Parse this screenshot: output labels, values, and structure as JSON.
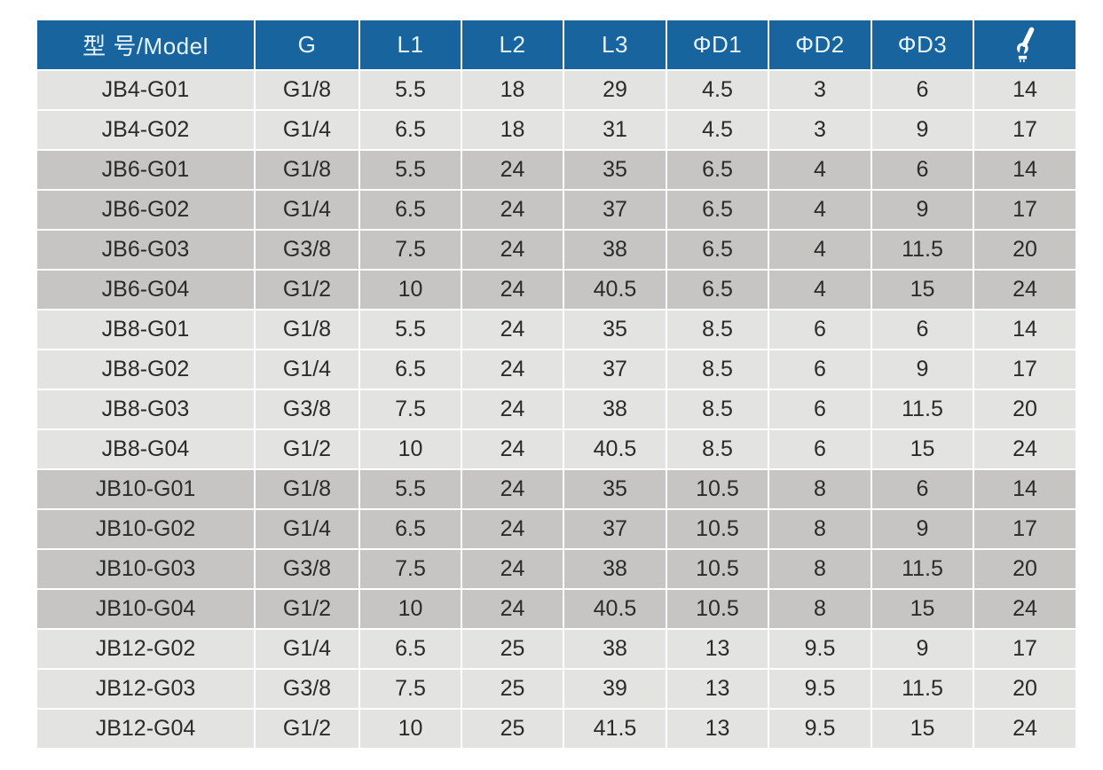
{
  "colors": {
    "page_bg": "#ffffff",
    "header_bg": "#17649e",
    "header_text": "#e8f3fb",
    "row_light": "#e3e3e1",
    "row_dark": "#c6c5c3",
    "cell_text": "#2b2b2b",
    "separator": "#ffffff",
    "icon_color": "#ffffff"
  },
  "table": {
    "columns": [
      {
        "label": "型 号/Model"
      },
      {
        "label": "G"
      },
      {
        "label": "L1"
      },
      {
        "label": "L2"
      },
      {
        "label": "L3"
      },
      {
        "label": "ΦD1"
      },
      {
        "label": "ΦD2"
      },
      {
        "label": "ΦD3"
      },
      {
        "label": "",
        "icon": "wrench-icon"
      }
    ],
    "rows": [
      {
        "shade": "light",
        "cells": [
          "JB4-G01",
          "G1/8",
          "5.5",
          "18",
          "29",
          "4.5",
          "3",
          "6",
          "14"
        ]
      },
      {
        "shade": "light",
        "cells": [
          "JB4-G02",
          "G1/4",
          "6.5",
          "18",
          "31",
          "4.5",
          "3",
          "9",
          "17"
        ]
      },
      {
        "shade": "dark",
        "cells": [
          "JB6-G01",
          "G1/8",
          "5.5",
          "24",
          "35",
          "6.5",
          "4",
          "6",
          "14"
        ]
      },
      {
        "shade": "dark",
        "cells": [
          "JB6-G02",
          "G1/4",
          "6.5",
          "24",
          "37",
          "6.5",
          "4",
          "9",
          "17"
        ]
      },
      {
        "shade": "dark",
        "cells": [
          "JB6-G03",
          "G3/8",
          "7.5",
          "24",
          "38",
          "6.5",
          "4",
          "11.5",
          "20"
        ]
      },
      {
        "shade": "dark",
        "cells": [
          "JB6-G04",
          "G1/2",
          "10",
          "24",
          "40.5",
          "6.5",
          "4",
          "15",
          "24"
        ]
      },
      {
        "shade": "light",
        "cells": [
          "JB8-G01",
          "G1/8",
          "5.5",
          "24",
          "35",
          "8.5",
          "6",
          "6",
          "14"
        ]
      },
      {
        "shade": "light",
        "cells": [
          "JB8-G02",
          "G1/4",
          "6.5",
          "24",
          "37",
          "8.5",
          "6",
          "9",
          "17"
        ]
      },
      {
        "shade": "light",
        "cells": [
          "JB8-G03",
          "G3/8",
          "7.5",
          "24",
          "38",
          "8.5",
          "6",
          "11.5",
          "20"
        ]
      },
      {
        "shade": "light",
        "cells": [
          "JB8-G04",
          "G1/2",
          "10",
          "24",
          "40.5",
          "8.5",
          "6",
          "15",
          "24"
        ]
      },
      {
        "shade": "dark",
        "cells": [
          "JB10-G01",
          "G1/8",
          "5.5",
          "24",
          "35",
          "10.5",
          "8",
          "6",
          "14"
        ]
      },
      {
        "shade": "dark",
        "cells": [
          "JB10-G02",
          "G1/4",
          "6.5",
          "24",
          "37",
          "10.5",
          "8",
          "9",
          "17"
        ]
      },
      {
        "shade": "dark",
        "cells": [
          "JB10-G03",
          "G3/8",
          "7.5",
          "24",
          "38",
          "10.5",
          "8",
          "11.5",
          "20"
        ]
      },
      {
        "shade": "dark",
        "cells": [
          "JB10-G04",
          "G1/2",
          "10",
          "24",
          "40.5",
          "10.5",
          "8",
          "15",
          "24"
        ]
      },
      {
        "shade": "light",
        "cells": [
          "JB12-G02",
          "G1/4",
          "6.5",
          "25",
          "38",
          "13",
          "9.5",
          "9",
          "17"
        ]
      },
      {
        "shade": "light",
        "cells": [
          "JB12-G03",
          "G3/8",
          "7.5",
          "25",
          "39",
          "13",
          "9.5",
          "11.5",
          "20"
        ]
      },
      {
        "shade": "light",
        "cells": [
          "JB12-G04",
          "G1/2",
          "10",
          "25",
          "41.5",
          "13",
          "9.5",
          "15",
          "24"
        ]
      }
    ]
  }
}
